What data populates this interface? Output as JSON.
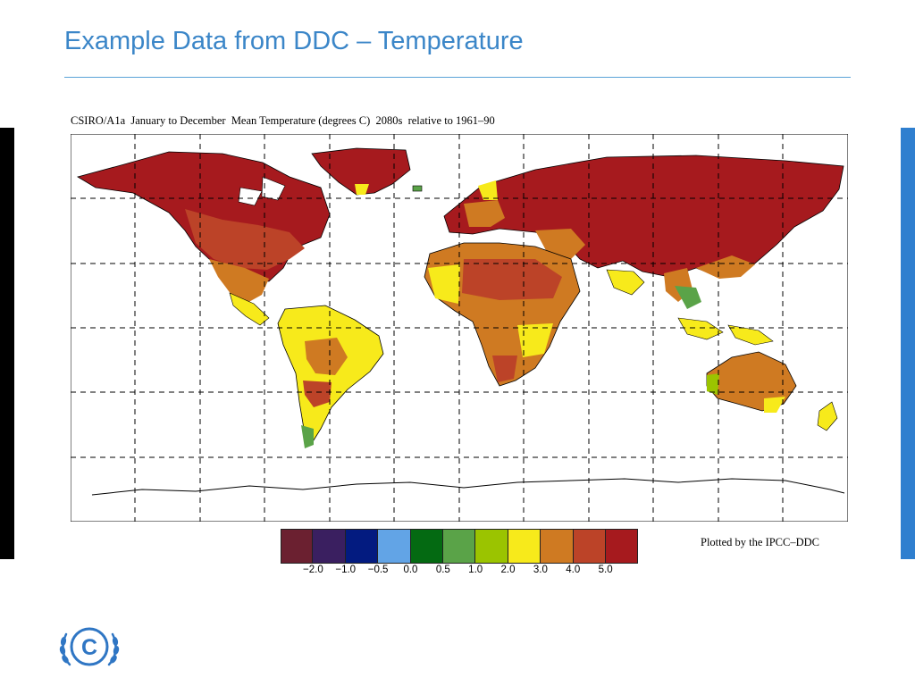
{
  "slide": {
    "title": "Example Data from DDC – Temperature"
  },
  "map": {
    "caption": "CSIRO/A1a  January to December  Mean Temperature (degrees C)  2080s  relative to 1961–90",
    "credit": "Plotted by the IPCC–DDC",
    "background_color": "#ffffff",
    "grid_style": "dashed"
  },
  "legend": {
    "colors": [
      "#6b2030",
      "#3a1f60",
      "#031b80",
      "#62a4e6",
      "#046a12",
      "#5aa348",
      "#9bc400",
      "#f7ea1b",
      "#cf7a22",
      "#bc4328",
      "#a61a1e"
    ],
    "tick_labels": [
      "−2.0",
      "−1.0",
      "−0.5",
      "0.0",
      "0.5",
      "1.0",
      "2.0",
      "3.0",
      "4.0",
      "5.0"
    ]
  },
  "logo": {
    "name": "ipcc-climate-logo",
    "symbol": "C",
    "color": "#2f76c4"
  }
}
